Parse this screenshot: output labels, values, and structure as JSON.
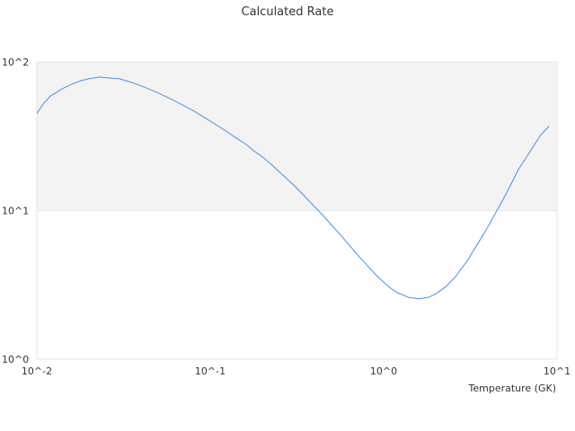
{
  "chart_data": {
    "type": "line",
    "title": "Calculated Rate",
    "xlabel": "Temperature (GK)",
    "ylabel": "",
    "x_scale": "log",
    "y_scale": "log",
    "xlim": [
      0.01,
      10
    ],
    "ylim": [
      1,
      100
    ],
    "grid": true,
    "x_ticks": [
      {
        "value": 0.01,
        "label": "10^-2"
      },
      {
        "value": 0.1,
        "label": "10^-1"
      },
      {
        "value": 1,
        "label": "10^0"
      },
      {
        "value": 10,
        "label": "10^1"
      }
    ],
    "y_ticks": [
      {
        "value": 1,
        "label": "10^0"
      },
      {
        "value": 10,
        "label": "10^1"
      },
      {
        "value": 100,
        "label": "10^2"
      }
    ],
    "series": [
      {
        "color": "#4a90e2",
        "x": [
          0.01,
          0.011,
          0.012,
          0.014,
          0.016,
          0.018,
          0.02,
          0.023,
          0.026,
          0.03,
          0.035,
          0.04,
          0.05,
          0.06,
          0.07,
          0.08,
          0.1,
          0.12,
          0.14,
          0.16,
          0.18,
          0.2,
          0.23,
          0.26,
          0.3,
          0.35,
          0.4,
          0.45,
          0.5,
          0.55,
          0.6,
          0.7,
          0.8,
          0.9,
          1.0,
          1.1,
          1.2,
          1.4,
          1.6,
          1.8,
          2.0,
          2.3,
          2.6,
          3.0,
          3.5,
          4.0,
          4.5,
          5.0,
          5.5,
          6.0,
          7.0,
          8.0,
          9.0
        ],
        "y": [
          45,
          53,
          59,
          66,
          71,
          75,
          77,
          79,
          78,
          77,
          73,
          69,
          62,
          56,
          51,
          47,
          40,
          35,
          31,
          28,
          25,
          23,
          20,
          17.5,
          15,
          12.5,
          10.6,
          9.2,
          8.0,
          7.1,
          6.3,
          5.1,
          4.3,
          3.7,
          3.3,
          3.0,
          2.8,
          2.6,
          2.55,
          2.6,
          2.75,
          3.1,
          3.6,
          4.5,
          6.0,
          7.8,
          10.0,
          12.5,
          15.5,
          19.0,
          25.0,
          32.0,
          37.0
        ]
      }
    ]
  }
}
